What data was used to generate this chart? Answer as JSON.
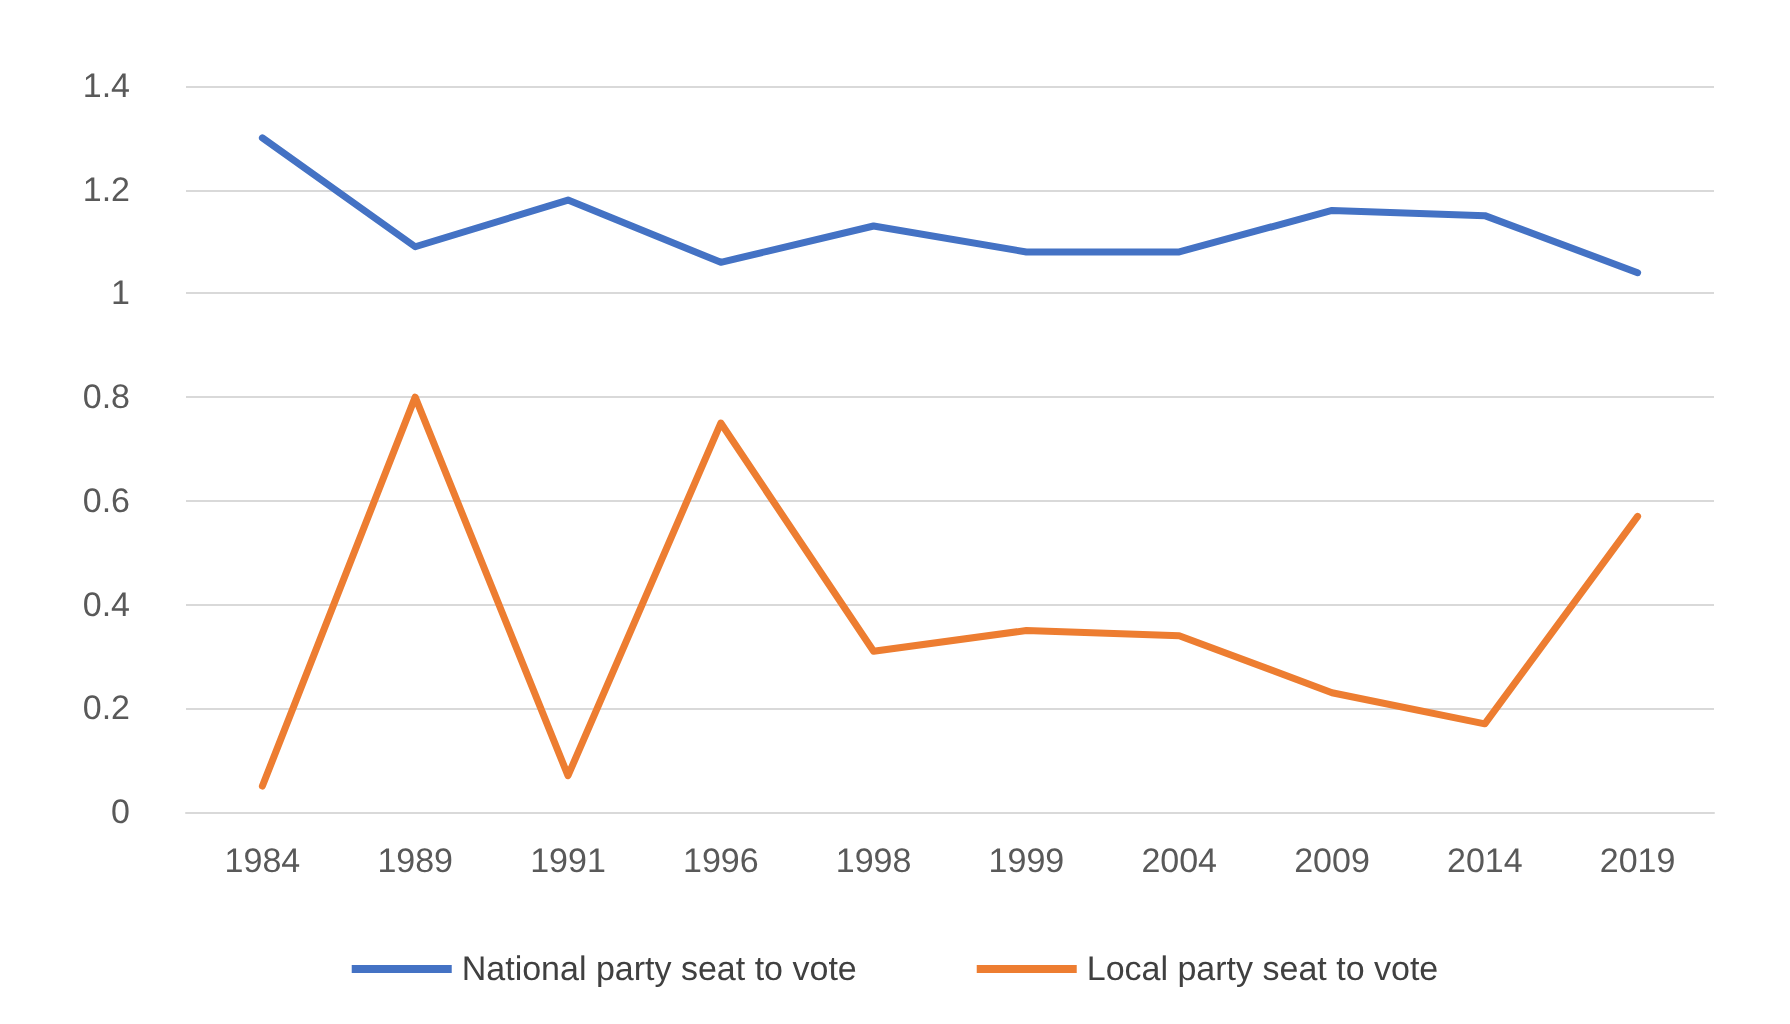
{
  "chart_data": {
    "type": "line",
    "categories": [
      "1984",
      "1989",
      "1991",
      "1996",
      "1998",
      "1999",
      "2004",
      "2009",
      "2014",
      "2019"
    ],
    "series": [
      {
        "name": "National party seat to vote",
        "color": "#4472c4",
        "values": [
          1.3,
          1.09,
          1.18,
          1.06,
          1.13,
          1.08,
          1.08,
          1.16,
          1.15,
          1.04
        ]
      },
      {
        "name": "Local party seat to vote",
        "color": "#ed7d31",
        "values": [
          0.05,
          0.8,
          0.07,
          0.75,
          0.31,
          0.35,
          0.34,
          0.23,
          0.17,
          0.57
        ]
      }
    ],
    "ylim": [
      0,
      1.4
    ],
    "yticks": [
      0,
      0.2,
      0.4,
      0.6,
      0.8,
      1,
      1.2,
      1.4
    ],
    "grid": "y",
    "legend": "bottom",
    "marker": "none",
    "line_style": "solid"
  }
}
